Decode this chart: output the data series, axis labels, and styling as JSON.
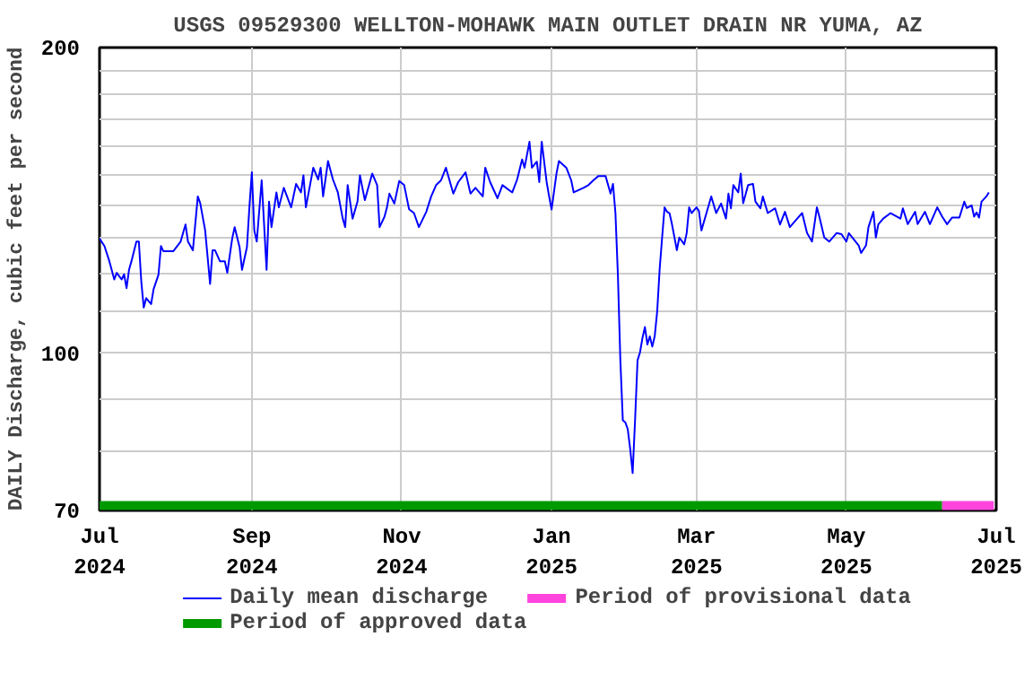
{
  "chart_data": {
    "type": "line",
    "title": "USGS 09529300 WELLTON-MOHAWK MAIN OUTLET DRAIN NR YUMA, AZ",
    "ylabel": "DAILY Discharge, cubic feet per second",
    "log": "y",
    "grid": true,
    "legend": "bottom",
    "line_style": "solid",
    "marker": "none",
    "xlim": [
      "2024-07-01",
      "2025-07-01"
    ],
    "xticks": [
      {
        "value": "2024-07-01",
        "label": "Jul\n2024"
      },
      {
        "value": "2024-09-01",
        "label": "Sep\n2024"
      },
      {
        "value": "2024-11-01",
        "label": "Nov\n2024"
      },
      {
        "value": "2025-01-01",
        "label": "Jan\n2025"
      },
      {
        "value": "2025-03-01",
        "label": "Mar\n2025"
      },
      {
        "value": "2025-05-01",
        "label": "May\n2025"
      },
      {
        "value": "2025-07-01",
        "label": "Jul\n2025"
      }
    ],
    "ylim": [
      70,
      200
    ],
    "yticks": [
      70,
      {
        "value": 80,
        "label": null
      },
      {
        "value": 90,
        "label": null
      },
      100,
      {
        "value": 110,
        "label": null
      },
      {
        "value": 120,
        "label": null
      },
      {
        "value": 130,
        "label": null
      },
      {
        "value": 140,
        "label": null
      },
      {
        "value": 150,
        "label": null
      },
      {
        "value": 160,
        "label": null
      },
      {
        "value": 170,
        "label": null
      },
      {
        "value": 180,
        "label": null
      },
      {
        "value": 190,
        "label": null
      },
      200
    ],
    "series": [
      {
        "name": "Period of approved data",
        "color": "#009900",
        "x": [
          "2024-07-01",
          "2025-06-09"
        ],
        "values": [
          70.8,
          70.8
        ]
      },
      {
        "name": "Period of provisional data",
        "color": "#ff44dd",
        "x": [
          "2025-06-09",
          "2025-06-30"
        ],
        "values": [
          70.8,
          70.8
        ]
      },
      {
        "name": "Daily mean discharge",
        "color": "#0000ff",
        "x": [
          "2024-07-01",
          "2024-07-03",
          "2024-07-05",
          "2024-07-07",
          "2024-07-08",
          "2024-07-10",
          "2024-07-11",
          "2024-07-12",
          "2024-07-13",
          "2024-07-14",
          "2024-07-16",
          "2024-07-17",
          "2024-07-18",
          "2024-07-19",
          "2024-07-20",
          "2024-07-22",
          "2024-07-23",
          "2024-07-25",
          "2024-07-26",
          "2024-07-27",
          "2024-07-31",
          "2024-08-03",
          "2024-08-05",
          "2024-08-06",
          "2024-08-08",
          "2024-08-10",
          "2024-08-11",
          "2024-08-13",
          "2024-08-15",
          "2024-08-16",
          "2024-08-17",
          "2024-08-19",
          "2024-08-21",
          "2024-08-22",
          "2024-08-24",
          "2024-08-25",
          "2024-08-27",
          "2024-08-28",
          "2024-08-30",
          "2024-08-31",
          "2024-09-01",
          "2024-09-02",
          "2024-09-03",
          "2024-09-05",
          "2024-09-07",
          "2024-09-08",
          "2024-09-09",
          "2024-09-11",
          "2024-09-12",
          "2024-09-14",
          "2024-09-17",
          "2024-09-19",
          "2024-09-21",
          "2024-09-22",
          "2024-09-23",
          "2024-09-26",
          "2024-09-28",
          "2024-09-29",
          "2024-09-30",
          "2024-10-02",
          "2024-10-04",
          "2024-10-06",
          "2024-10-08",
          "2024-10-09",
          "2024-10-10",
          "2024-10-12",
          "2024-10-14",
          "2024-10-15",
          "2024-10-16",
          "2024-10-17",
          "2024-10-20",
          "2024-10-22",
          "2024-10-23",
          "2024-10-25",
          "2024-10-26",
          "2024-10-27",
          "2024-10-29",
          "2024-10-31",
          "2024-11-02",
          "2024-11-04",
          "2024-11-06",
          "2024-11-08",
          "2024-11-11",
          "2024-11-13",
          "2024-11-15",
          "2024-11-17",
          "2024-11-19",
          "2024-11-22",
          "2024-11-24",
          "2024-11-27",
          "2024-11-29",
          "2024-12-01",
          "2024-12-04",
          "2024-12-05",
          "2024-12-07",
          "2024-12-10",
          "2024-12-12",
          "2024-12-16",
          "2024-12-18",
          "2024-12-20",
          "2024-12-21",
          "2024-12-23",
          "2024-12-24",
          "2024-12-26",
          "2024-12-27",
          "2024-12-28",
          "2024-12-30",
          "2024-12-31",
          "2025-01-01",
          "2025-01-03",
          "2025-01-04",
          "2025-01-07",
          "2025-01-09",
          "2025-01-10",
          "2025-01-14",
          "2025-01-16",
          "2025-01-18",
          "2025-01-20",
          "2025-01-23",
          "2025-01-25",
          "2025-01-26",
          "2025-01-27",
          "2025-01-28",
          "2025-01-29",
          "2025-01-30",
          "2025-01-31",
          "2025-02-01",
          "2025-02-02",
          "2025-02-03",
          "2025-02-04",
          "2025-02-05",
          "2025-02-06",
          "2025-02-07",
          "2025-02-08",
          "2025-02-09",
          "2025-02-10",
          "2025-02-11",
          "2025-02-12",
          "2025-02-13",
          "2025-02-14",
          "2025-02-15",
          "2025-02-16",
          "2025-02-17",
          "2025-02-18",
          "2025-02-19",
          "2025-02-21",
          "2025-02-22",
          "2025-02-24",
          "2025-02-25",
          "2025-02-26",
          "2025-02-27",
          "2025-03-01",
          "2025-03-02",
          "2025-03-03",
          "2025-03-07",
          "2025-03-09",
          "2025-03-11",
          "2025-03-13",
          "2025-03-14",
          "2025-03-15",
          "2025-03-16",
          "2025-03-18",
          "2025-03-19",
          "2025-03-20",
          "2025-03-22",
          "2025-03-24",
          "2025-03-25",
          "2025-03-27",
          "2025-03-28",
          "2025-03-30",
          "2025-04-02",
          "2025-04-04",
          "2025-04-06",
          "2025-04-08",
          "2025-04-11",
          "2025-04-13",
          "2025-04-15",
          "2025-04-17",
          "2025-04-19",
          "2025-04-20",
          "2025-04-22",
          "2025-04-24",
          "2025-04-27",
          "2025-04-29",
          "2025-05-01",
          "2025-05-02",
          "2025-05-06",
          "2025-05-07",
          "2025-05-09",
          "2025-05-10",
          "2025-05-12",
          "2025-05-13",
          "2025-05-14",
          "2025-05-16",
          "2025-05-19",
          "2025-05-23",
          "2025-05-24",
          "2025-05-26",
          "2025-05-29",
          "2025-05-30",
          "2025-06-02",
          "2025-06-04",
          "2025-06-07",
          "2025-06-09",
          "2025-06-11",
          "2025-06-13",
          "2025-06-16",
          "2025-06-18",
          "2025-06-19",
          "2025-06-21",
          "2025-06-22",
          "2025-06-23",
          "2025-06-24",
          "2025-06-25",
          "2025-06-27",
          "2025-06-28"
        ],
        "values": [
          129.7,
          127.5,
          123.2,
          118.2,
          120,
          118.2,
          119.6,
          115.9,
          120.8,
          123.2,
          128.8,
          128.8,
          117.6,
          110.9,
          113.3,
          111.8,
          115.6,
          119.5,
          127.5,
          126,
          126,
          128.8,
          133.9,
          128.8,
          126.3,
          142.7,
          140.5,
          132.1,
          117,
          126.3,
          126.3,
          123.2,
          123.2,
          120,
          129.7,
          133.1,
          127.2,
          120.8,
          127.2,
          139.2,
          150.7,
          132.1,
          128.8,
          148,
          120.8,
          141,
          133.1,
          144,
          139.2,
          145.5,
          139.2,
          146.8,
          144,
          149.7,
          139.2,
          152.3,
          148.3,
          152.3,
          142.7,
          154.6,
          148.3,
          144,
          135.7,
          133.1,
          146.4,
          135.7,
          141,
          149.7,
          145.5,
          141.5,
          150.3,
          146.4,
          133.1,
          136.3,
          139.2,
          143.6,
          140.4,
          147.8,
          146.4,
          138.6,
          137.4,
          133.1,
          137.8,
          142.7,
          146.4,
          148,
          152.3,
          143.6,
          147.4,
          150.7,
          143.6,
          145.5,
          142.7,
          152.3,
          147.4,
          142.1,
          146.4,
          144,
          148.3,
          155.2,
          152.3,
          161.5,
          152.3,
          154.4,
          147.4,
          161.5,
          147.4,
          142.7,
          138.5,
          150.3,
          154.6,
          152.3,
          148,
          144,
          145.5,
          146.4,
          148,
          149.4,
          149.4,
          143.6,
          146.8,
          137.4,
          119.4,
          98.4,
          85.9,
          85.5,
          84.2,
          80.5,
          76.2,
          86,
          98.4,
          100.2,
          103.5,
          106.1,
          102,
          103.9,
          101.5,
          104,
          110,
          121,
          130,
          139.2,
          137.8,
          137.4,
          134,
          126.3,
          130,
          128,
          131.3,
          139.2,
          137.4,
          139.2,
          138,
          132.1,
          142.7,
          137.4,
          140.4,
          135.7,
          143.6,
          138.9,
          146.4,
          144,
          150.3,
          140.5,
          146.4,
          146.8,
          141,
          138.9,
          142.7,
          137.4,
          138.9,
          133.9,
          137.8,
          133.1,
          135.7,
          137.4,
          131.3,
          128.8,
          139.2,
          136.3,
          130,
          128.8,
          131.3,
          131,
          128.8,
          131.3,
          127.7,
          125.5,
          127.7,
          133.1,
          137.8,
          130,
          133.9,
          135.7,
          137.4,
          135.7,
          138.9,
          134,
          137.8,
          134,
          137.8,
          134,
          139.2,
          136.3,
          134,
          136,
          136,
          141,
          139,
          139.8,
          136.3,
          137.6,
          136,
          141,
          142.7,
          144
        ]
      }
    ]
  }
}
